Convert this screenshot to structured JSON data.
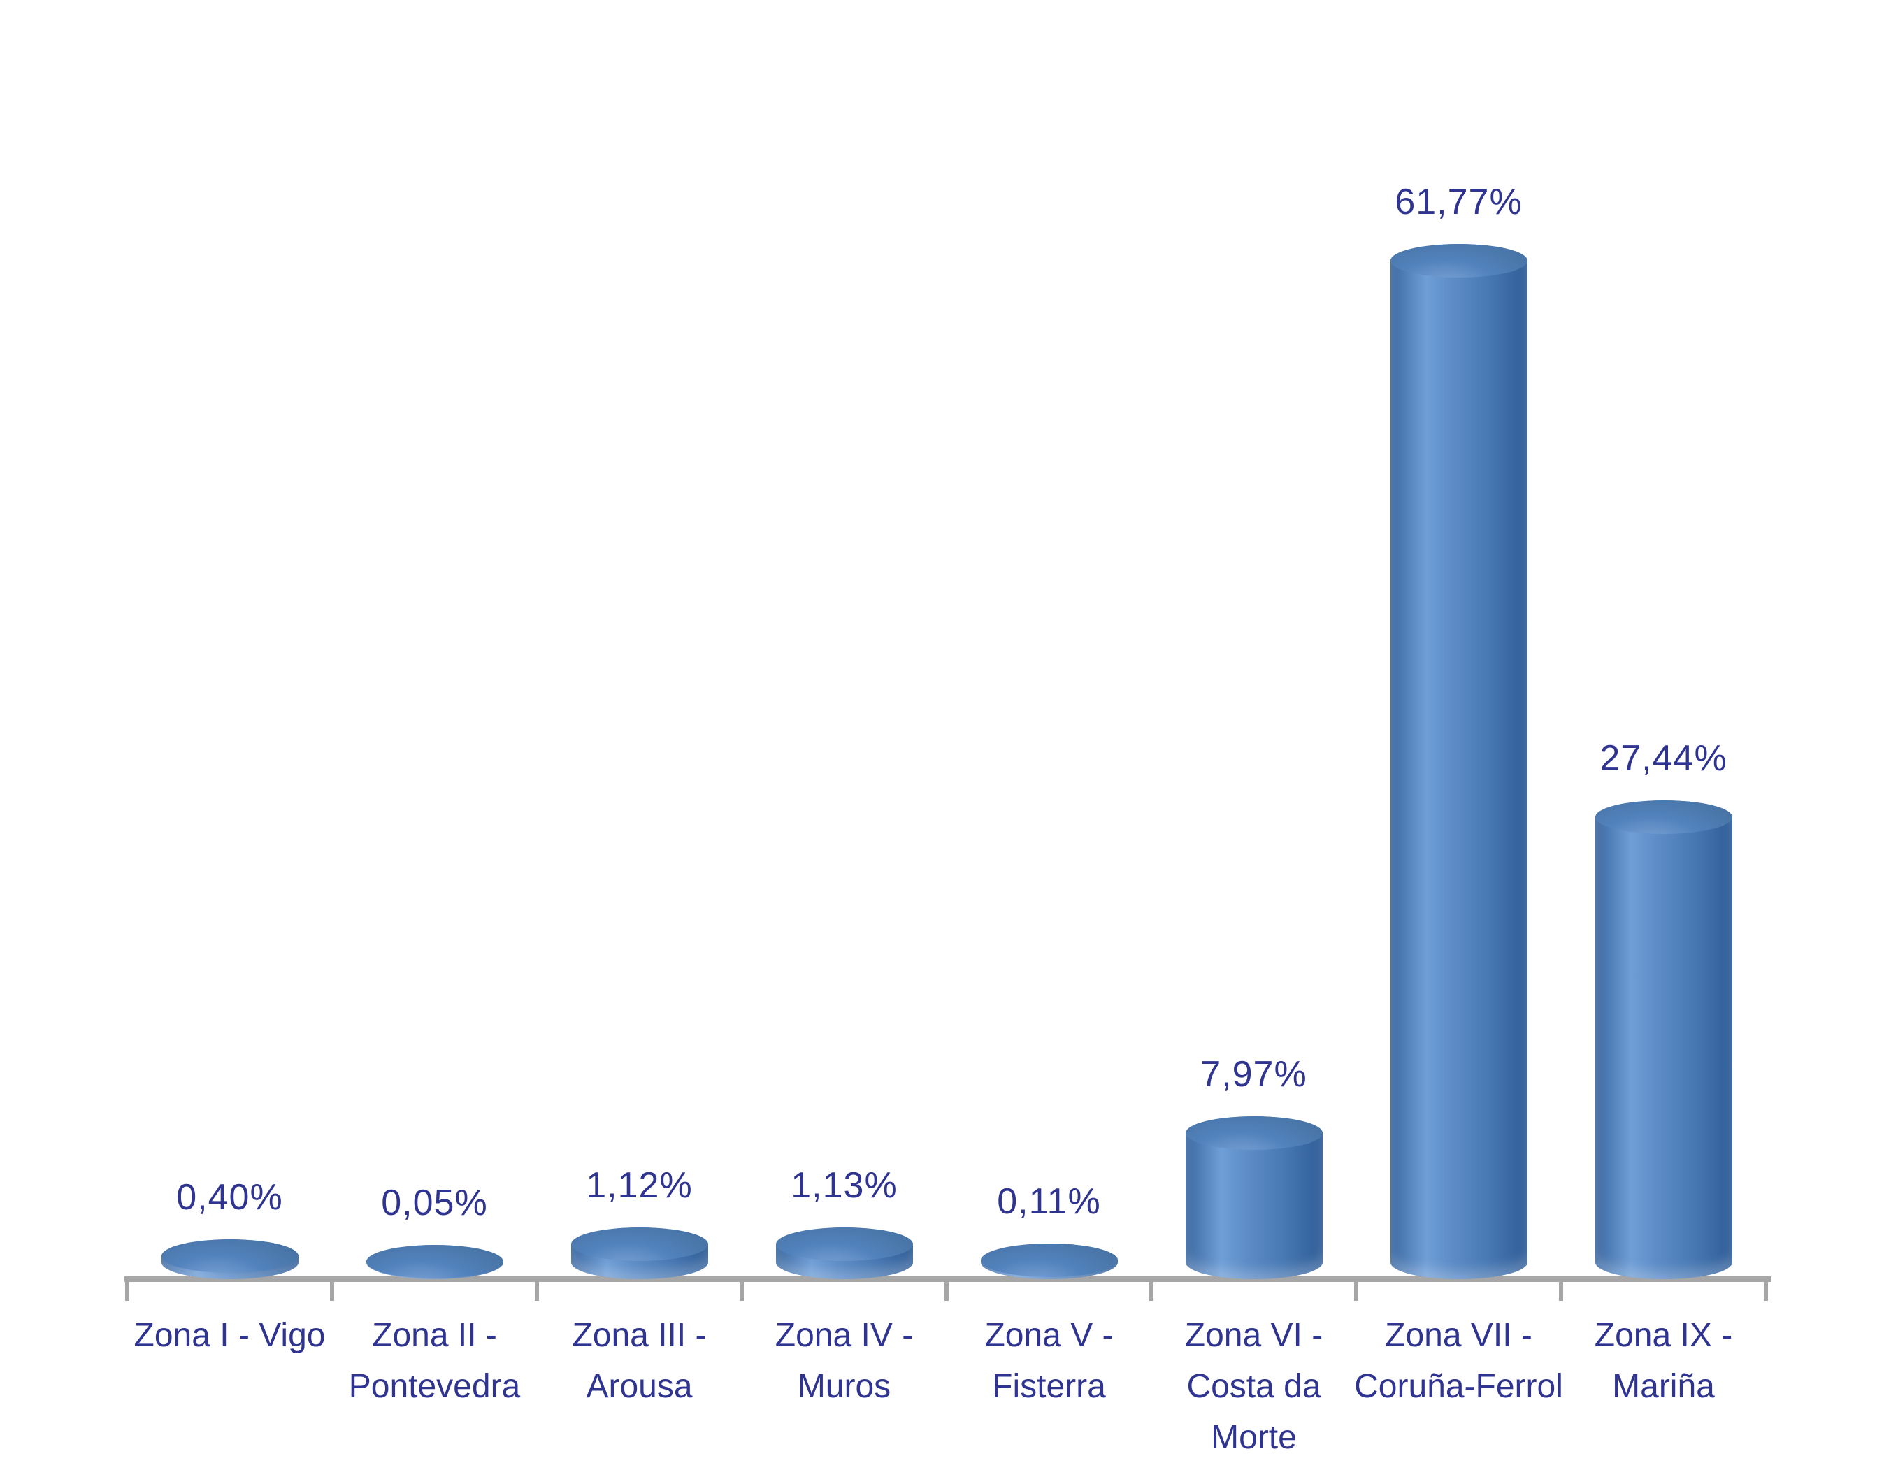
{
  "chart_data": {
    "type": "bar",
    "subtype": "3d-cylinder",
    "orientation": "vertical",
    "title": "",
    "xlabel": "",
    "ylabel": "",
    "ylim": [
      0,
      65
    ],
    "grid": false,
    "legend": false,
    "categories": [
      "Zona I - Vigo",
      "Zona II - Pontevedra",
      "Zona III - Arousa",
      "Zona IV - Muros",
      "Zona V - Fisterra",
      "Zona VI - Costa da Morte",
      "Zona VII - Coruña-Ferrol",
      "Zona IX - Mariña"
    ],
    "category_lines": [
      [
        "Zona I - Vigo"
      ],
      [
        "Zona II -",
        "Pontevedra"
      ],
      [
        "Zona III -",
        "Arousa"
      ],
      [
        "Zona IV -",
        "Muros"
      ],
      [
        "Zona V -",
        "Fisterra"
      ],
      [
        "Zona VI -",
        "Costa da",
        "Morte"
      ],
      [
        "Zona VII -",
        "Coruña-Ferrol"
      ],
      [
        "Zona IX -",
        "Mariña"
      ]
    ],
    "values": [
      0.4,
      0.05,
      1.12,
      1.13,
      0.11,
      7.97,
      61.77,
      27.44
    ],
    "value_labels": [
      "0,40%",
      "0,05%",
      "1,12%",
      "1,13%",
      "0,11%",
      "7,97%",
      "61,77%",
      "27,44%"
    ],
    "colors": {
      "bar_fill": "#4F81BD",
      "bar_highlight": "#6F9ED6",
      "bar_shadow": "#2E5C97",
      "label_text": "#2F3490",
      "axis_line": "#A6A6A6",
      "background": "#FFFFFF"
    }
  }
}
